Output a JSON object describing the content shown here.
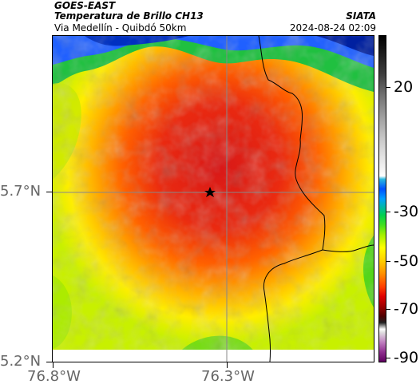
{
  "header": {
    "satellite": "GOES-EAST",
    "product": "Temperatura de Brillo CH13",
    "region": "Via Medellín - Quibdó 50km",
    "agency": "SIATA",
    "timestamp": "2024-08-24 02:09"
  },
  "axes": {
    "y_labels": [
      "5.7°N",
      "5.2°N"
    ],
    "x_labels": [
      "76.8°W",
      "76.3°W"
    ]
  },
  "colorbar": {
    "labels": [
      "20",
      "-30",
      "-50",
      "-70",
      "-90"
    ],
    "unit_hint": "Temperature (°C)"
  },
  "marker": {
    "name": "star-marker"
  },
  "colors": {
    "frame": "#000000",
    "axis_text": "#666666",
    "gridline": "#888888"
  }
}
